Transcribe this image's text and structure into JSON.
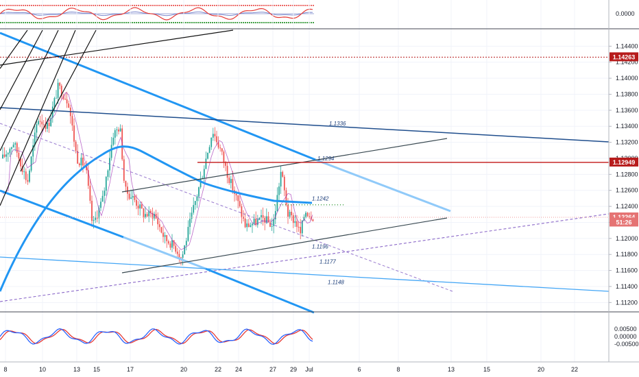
{
  "chart_data": [
    {
      "type": "line",
      "panel": "upper-oscillator",
      "y_ticks": [
        "0.0000"
      ],
      "guide_colors": {
        "upper": "#e53935",
        "lower": "#43a047"
      }
    },
    {
      "type": "candlestick",
      "panel": "price",
      "instrument_hint": "price ~1.12-1.14",
      "ylim": [
        1.111,
        1.146
      ],
      "y_ticks": [
        "1.14400",
        "1.14200",
        "1.14000",
        "1.13800",
        "1.13600",
        "1.13400",
        "1.13200",
        "1.13000",
        "1.12800",
        "1.12600",
        "1.12400",
        "1.12200",
        "1.12000",
        "1.11800",
        "1.11600",
        "1.11400",
        "1.11200"
      ],
      "x_ticks": [
        "8",
        "10",
        "13",
        "15",
        "17",
        "20",
        "22",
        "24",
        "27",
        "29",
        "Jul",
        "6",
        "8",
        "13",
        "15",
        "20",
        "22"
      ],
      "level_labels": [
        {
          "text": "1.1336",
          "value": 1.1336
        },
        {
          "text": "1.1294",
          "value": 1.1294
        },
        {
          "text": "1.1242",
          "value": 1.1242
        },
        {
          "text": "1.1196",
          "value": 1.1196
        },
        {
          "text": "1.1177",
          "value": 1.1177
        },
        {
          "text": "1.1148",
          "value": 1.1148
        }
      ],
      "price_badges": [
        {
          "text": "1.14263",
          "value": 1.14263,
          "color": "#b71c1c"
        },
        {
          "text": "1.12949",
          "value": 1.12949,
          "color": "#b71c1c"
        },
        {
          "text": "1.12264",
          "value": 1.12264,
          "color": "#e57373"
        },
        {
          "text": "51:26",
          "value": 1.122,
          "color": "#e57373"
        }
      ],
      "colors": {
        "up": "#26a69a",
        "down": "#ef5350",
        "trend": "#2196f3",
        "channel": "#1e4d8c",
        "wedge": "#37474f"
      }
    },
    {
      "type": "line",
      "panel": "lower-oscillator",
      "y_ticks": [
        "0.00500",
        "0.00000",
        "-0.00500"
      ],
      "series_colors": [
        "#2962ff",
        "#e53935"
      ]
    }
  ]
}
